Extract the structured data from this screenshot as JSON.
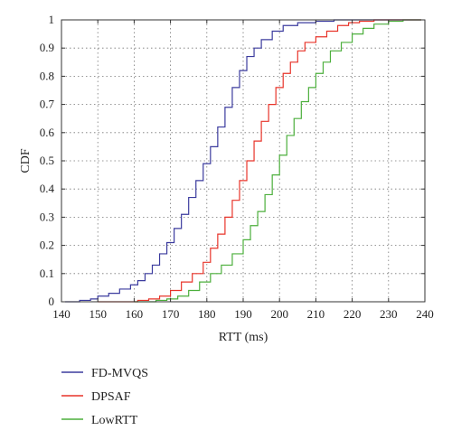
{
  "chart_data": {
    "type": "line",
    "step": true,
    "xlabel": "RTT (ms)",
    "ylabel": "CDF",
    "xlim": [
      140,
      240
    ],
    "ylim": [
      0,
      1
    ],
    "xticks": [
      140,
      150,
      160,
      170,
      180,
      190,
      200,
      210,
      220,
      230,
      240
    ],
    "yticks": [
      0,
      0.1,
      0.2,
      0.3,
      0.4,
      0.5,
      0.6,
      0.7,
      0.8,
      0.9,
      1
    ],
    "grid": true,
    "legend_position": "below",
    "series": [
      {
        "name": "FD-MVQS",
        "color": "#3b3b9e",
        "x": [
          141,
          145,
          148,
          150,
          153,
          156,
          159,
          161,
          163,
          165,
          167,
          169,
          171,
          173,
          175,
          177,
          179,
          181,
          183,
          185,
          187,
          189,
          191,
          193,
          195,
          198,
          201,
          205,
          210,
          215,
          222,
          232
        ],
        "y": [
          0.0,
          0.005,
          0.01,
          0.02,
          0.03,
          0.045,
          0.06,
          0.075,
          0.1,
          0.13,
          0.17,
          0.21,
          0.26,
          0.31,
          0.37,
          0.43,
          0.49,
          0.55,
          0.62,
          0.69,
          0.76,
          0.82,
          0.87,
          0.9,
          0.93,
          0.96,
          0.98,
          0.99,
          0.995,
          1.0,
          1.0,
          1.0
        ]
      },
      {
        "name": "DPSAF",
        "color": "#e8342a",
        "x": [
          150,
          158,
          161,
          164,
          167,
          170,
          173,
          176,
          179,
          181,
          183,
          185,
          187,
          189,
          191,
          193,
          195,
          197,
          199,
          201,
          203,
          205,
          207,
          210,
          213,
          216,
          219,
          222,
          226,
          231
        ],
        "y": [
          0.0,
          0.0,
          0.005,
          0.01,
          0.02,
          0.04,
          0.07,
          0.1,
          0.14,
          0.19,
          0.24,
          0.3,
          0.36,
          0.43,
          0.5,
          0.57,
          0.64,
          0.7,
          0.76,
          0.81,
          0.85,
          0.89,
          0.92,
          0.94,
          0.96,
          0.98,
          0.99,
          0.995,
          1.0,
          1.0
        ]
      },
      {
        "name": "LowRTT",
        "color": "#4caf3c",
        "x": [
          160,
          166,
          169,
          172,
          175,
          178,
          181,
          184,
          187,
          190,
          192,
          194,
          196,
          198,
          200,
          202,
          204,
          206,
          208,
          210,
          212,
          214,
          217,
          220,
          223,
          226,
          230,
          234
        ],
        "y": [
          0.0,
          0.005,
          0.01,
          0.02,
          0.04,
          0.07,
          0.1,
          0.13,
          0.17,
          0.22,
          0.27,
          0.32,
          0.38,
          0.45,
          0.52,
          0.59,
          0.65,
          0.71,
          0.76,
          0.81,
          0.85,
          0.89,
          0.92,
          0.95,
          0.97,
          0.985,
          0.995,
          1.0
        ]
      }
    ]
  }
}
